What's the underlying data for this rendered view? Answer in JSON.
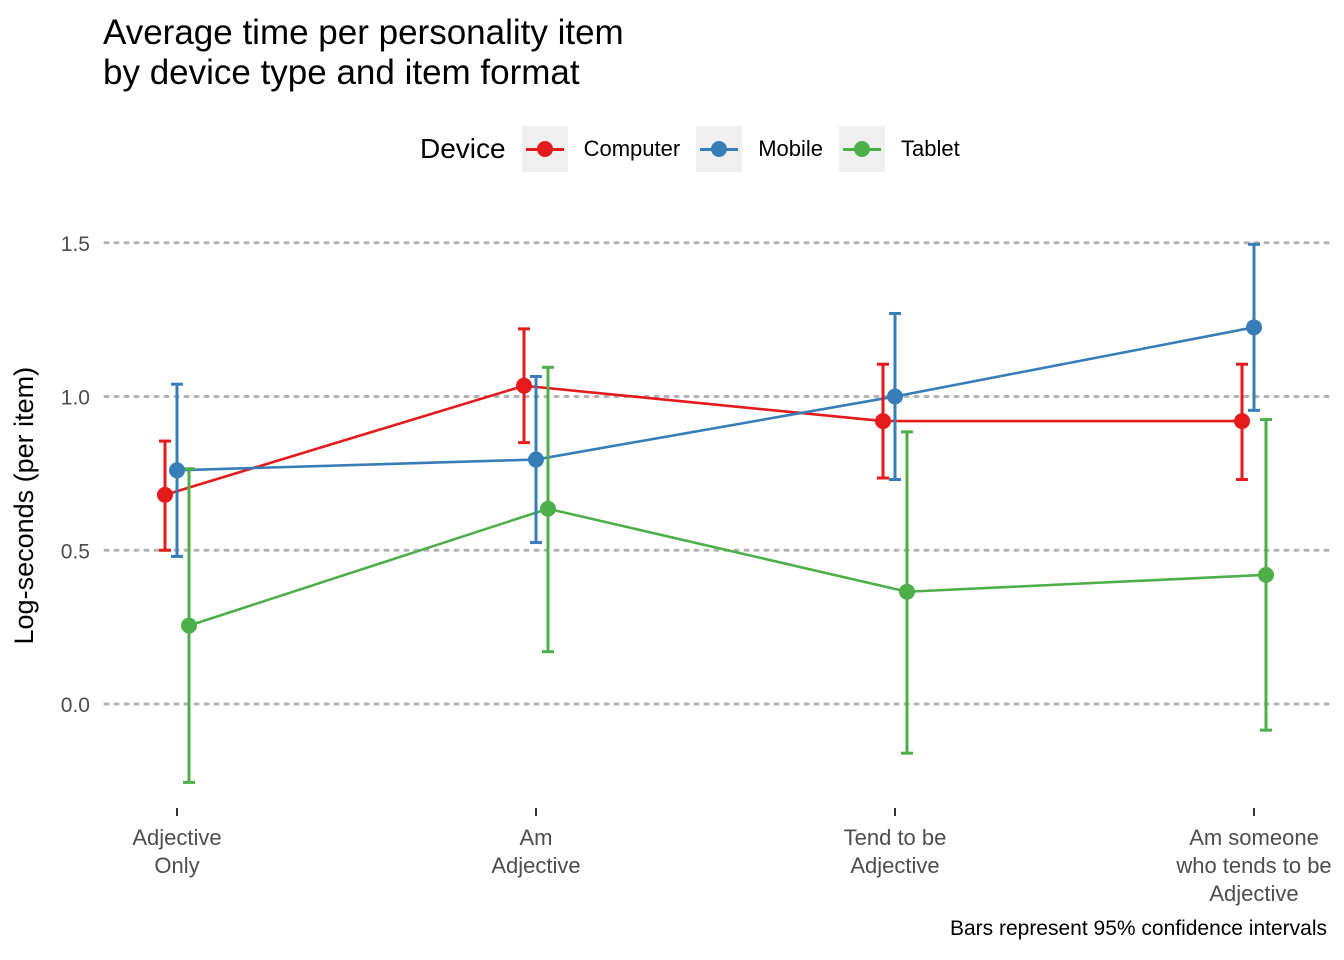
{
  "title_lines": [
    "Average time per personality item",
    "by device type and item format"
  ],
  "caption": "Bars represent 95% confidence intervals",
  "legend": {
    "title": "Device",
    "items": [
      {
        "label": "Computer",
        "color": "#E41A1C"
      },
      {
        "label": "Mobile",
        "color": "#377EB8"
      },
      {
        "label": "Tablet",
        "color": "#4DAF4A"
      }
    ]
  },
  "chart_data": {
    "type": "line",
    "title": "Average time per personality item by device type and item format",
    "xlabel": "",
    "ylabel": "Log-seconds (per item)",
    "ylim": [
      -0.3,
      1.55
    ],
    "yticks": [
      0.0,
      0.5,
      1.0,
      1.5
    ],
    "ytick_labels": [
      "0.0",
      "0.5",
      "1.0",
      "1.5"
    ],
    "grid": "major y, dotted",
    "legend_position": "top",
    "categories": [
      [
        "Adjective",
        "Only"
      ],
      [
        "Am",
        "Adjective"
      ],
      [
        "Tend to be",
        "Adjective"
      ],
      [
        "Am someone",
        "who tends to be",
        "Adjective"
      ]
    ],
    "series": [
      {
        "name": "Computer",
        "color": "#E41A1C",
        "values": [
          0.68,
          1.035,
          0.92,
          0.92
        ],
        "ci_low": [
          0.5,
          0.85,
          0.735,
          0.73
        ],
        "ci_high": [
          0.855,
          1.22,
          1.105,
          1.105
        ]
      },
      {
        "name": "Mobile",
        "color": "#377EB8",
        "values": [
          0.76,
          0.795,
          1.0,
          1.225
        ],
        "ci_low": [
          0.48,
          0.525,
          0.73,
          0.955
        ],
        "ci_high": [
          1.04,
          1.065,
          1.27,
          1.495
        ]
      },
      {
        "name": "Tablet",
        "color": "#4DAF4A",
        "values": [
          0.255,
          0.635,
          0.365,
          0.42
        ],
        "ci_low": [
          -0.255,
          0.17,
          -0.16,
          -0.085
        ],
        "ci_high": [
          0.765,
          1.095,
          0.885,
          0.925
        ]
      }
    ]
  }
}
